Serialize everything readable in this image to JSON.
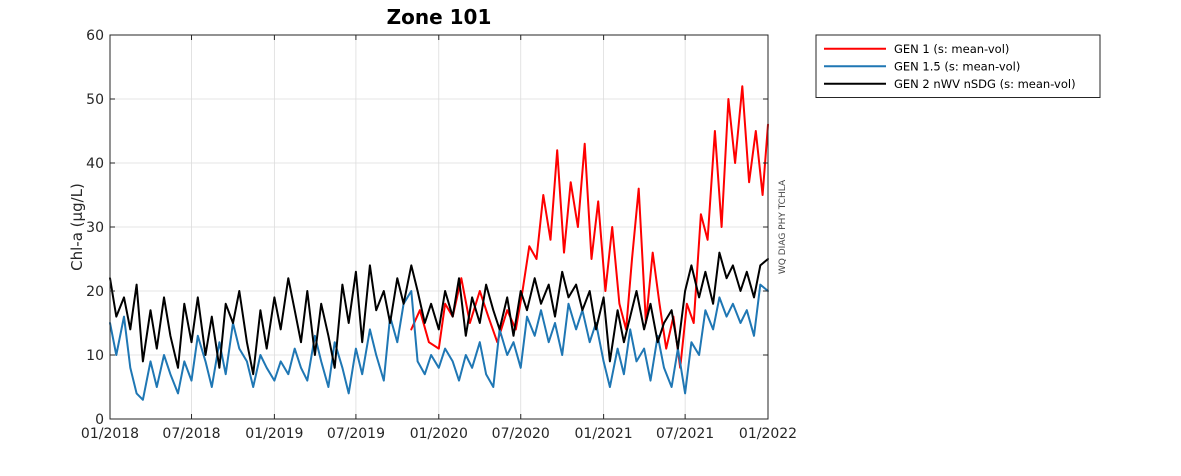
{
  "chart_data": {
    "type": "line",
    "title": "Zone 101",
    "xlabel": "",
    "ylabel": "Chl-a (μg/L)",
    "side_label": "WQ DIAG PHY TCHLA",
    "xlim": [
      "2018-01-01",
      "2022-01-01"
    ],
    "ylim": [
      0,
      60
    ],
    "x_ticks": [
      "01/2018",
      "07/2018",
      "01/2019",
      "07/2019",
      "01/2020",
      "07/2020",
      "01/2021",
      "07/2021",
      "01/2022"
    ],
    "y_ticks": [
      "0",
      "10",
      "20",
      "30",
      "40",
      "50",
      "60"
    ],
    "grid": true,
    "legend_position": "outside-right",
    "series": [
      {
        "name": "GEN 1 (s: mean-vol)",
        "color": "#ff0000",
        "x": [
          "2019-11-01",
          "2019-11-20",
          "2019-12-10",
          "2020-01-01",
          "2020-01-15",
          "2020-02-01",
          "2020-02-20",
          "2020-03-10",
          "2020-04-01",
          "2020-04-20",
          "2020-05-10",
          "2020-06-01",
          "2020-06-20",
          "2020-07-05",
          "2020-07-20",
          "2020-08-05",
          "2020-08-20",
          "2020-09-05",
          "2020-09-20",
          "2020-10-05",
          "2020-10-20",
          "2020-11-05",
          "2020-11-20",
          "2020-12-05",
          "2020-12-20",
          "2021-01-05",
          "2021-01-20",
          "2021-02-05",
          "2021-02-20",
          "2021-03-05",
          "2021-03-20",
          "2021-04-05",
          "2021-04-20",
          "2021-05-05",
          "2021-05-20",
          "2021-06-05",
          "2021-06-20",
          "2021-07-05",
          "2021-07-20",
          "2021-08-05",
          "2021-08-20",
          "2021-09-05",
          "2021-09-20",
          "2021-10-05",
          "2021-10-20",
          "2021-11-05",
          "2021-11-20",
          "2021-12-05",
          "2021-12-20",
          "2022-01-01"
        ],
        "y": [
          14,
          17,
          12,
          11,
          18,
          16,
          22,
          15,
          20,
          16,
          12,
          17,
          14,
          20,
          27,
          25,
          35,
          28,
          42,
          26,
          37,
          30,
          43,
          25,
          34,
          20,
          30,
          18,
          14,
          25,
          36,
          15,
          26,
          18,
          11,
          16,
          8,
          18,
          15,
          32,
          28,
          45,
          30,
          50,
          40,
          52,
          37,
          45,
          35,
          46
        ]
      },
      {
        "name": "GEN 1.5 (s: mean-vol)",
        "color": "#1f77b4",
        "x": [
          "2018-01-01",
          "2018-01-15",
          "2018-02-01",
          "2018-02-15",
          "2018-03-01",
          "2018-03-15",
          "2018-04-01",
          "2018-04-15",
          "2018-05-01",
          "2018-05-15",
          "2018-06-01",
          "2018-06-15",
          "2018-07-01",
          "2018-07-15",
          "2018-08-01",
          "2018-08-15",
          "2018-09-01",
          "2018-09-15",
          "2018-10-01",
          "2018-10-15",
          "2018-11-01",
          "2018-11-15",
          "2018-12-01",
          "2018-12-15",
          "2019-01-01",
          "2019-01-15",
          "2019-02-01",
          "2019-02-15",
          "2019-03-01",
          "2019-03-15",
          "2019-04-01",
          "2019-04-15",
          "2019-05-01",
          "2019-05-15",
          "2019-06-01",
          "2019-06-15",
          "2019-07-01",
          "2019-07-15",
          "2019-08-01",
          "2019-08-15",
          "2019-09-01",
          "2019-09-15",
          "2019-10-01",
          "2019-10-15",
          "2019-11-01",
          "2019-11-15",
          "2019-12-01",
          "2019-12-15",
          "2020-01-01",
          "2020-01-15",
          "2020-02-01",
          "2020-02-15",
          "2020-03-01",
          "2020-03-15",
          "2020-04-01",
          "2020-04-15",
          "2020-05-01",
          "2020-05-15",
          "2020-06-01",
          "2020-06-15",
          "2020-07-01",
          "2020-07-15",
          "2020-08-01",
          "2020-08-15",
          "2020-09-01",
          "2020-09-15",
          "2020-10-01",
          "2020-10-15",
          "2020-11-01",
          "2020-11-15",
          "2020-12-01",
          "2020-12-15",
          "2021-01-01",
          "2021-01-15",
          "2021-02-01",
          "2021-02-15",
          "2021-03-01",
          "2021-03-15",
          "2021-04-01",
          "2021-04-15",
          "2021-05-01",
          "2021-05-15",
          "2021-06-01",
          "2021-06-15",
          "2021-07-01",
          "2021-07-15",
          "2021-08-01",
          "2021-08-15",
          "2021-09-01",
          "2021-09-15",
          "2021-10-01",
          "2021-10-15",
          "2021-11-01",
          "2021-11-15",
          "2021-12-01",
          "2021-12-15",
          "2022-01-01"
        ],
        "y": [
          15,
          10,
          16,
          8,
          4,
          3,
          9,
          5,
          10,
          7,
          4,
          9,
          6,
          13,
          9,
          5,
          12,
          7,
          15,
          11,
          9,
          5,
          10,
          8,
          6,
          9,
          7,
          11,
          8,
          6,
          13,
          9,
          5,
          12,
          8,
          4,
          11,
          7,
          14,
          10,
          6,
          16,
          12,
          18,
          20,
          9,
          7,
          10,
          8,
          11,
          9,
          6,
          10,
          8,
          12,
          7,
          5,
          14,
          10,
          12,
          8,
          16,
          13,
          17,
          12,
          15,
          10,
          18,
          14,
          17,
          12,
          15,
          9,
          5,
          11,
          7,
          14,
          9,
          11,
          6,
          13,
          8,
          5,
          11,
          4,
          12,
          10,
          17,
          14,
          19,
          16,
          18,
          15,
          17,
          13,
          21,
          20
        ]
      },
      {
        "name": "GEN 2 nWV nSDG (s: mean-vol)",
        "color": "#000000",
        "x": [
          "2018-01-01",
          "2018-01-15",
          "2018-02-01",
          "2018-02-15",
          "2018-03-01",
          "2018-03-15",
          "2018-04-01",
          "2018-04-15",
          "2018-05-01",
          "2018-05-15",
          "2018-06-01",
          "2018-06-15",
          "2018-07-01",
          "2018-07-15",
          "2018-08-01",
          "2018-08-15",
          "2018-09-01",
          "2018-09-15",
          "2018-10-01",
          "2018-10-15",
          "2018-11-01",
          "2018-11-15",
          "2018-12-01",
          "2018-12-15",
          "2019-01-01",
          "2019-01-15",
          "2019-02-01",
          "2019-02-15",
          "2019-03-01",
          "2019-03-15",
          "2019-04-01",
          "2019-04-15",
          "2019-05-01",
          "2019-05-15",
          "2019-06-01",
          "2019-06-15",
          "2019-07-01",
          "2019-07-15",
          "2019-08-01",
          "2019-08-15",
          "2019-09-01",
          "2019-09-15",
          "2019-10-01",
          "2019-10-15",
          "2019-11-01",
          "2019-11-15",
          "2019-12-01",
          "2019-12-15",
          "2020-01-01",
          "2020-01-15",
          "2020-02-01",
          "2020-02-15",
          "2020-03-01",
          "2020-03-15",
          "2020-04-01",
          "2020-04-15",
          "2020-05-01",
          "2020-05-15",
          "2020-06-01",
          "2020-06-15",
          "2020-07-01",
          "2020-07-15",
          "2020-08-01",
          "2020-08-15",
          "2020-09-01",
          "2020-09-15",
          "2020-10-01",
          "2020-10-15",
          "2020-11-01",
          "2020-11-15",
          "2020-12-01",
          "2020-12-15",
          "2021-01-01",
          "2021-01-15",
          "2021-02-01",
          "2021-02-15",
          "2021-03-01",
          "2021-03-15",
          "2021-04-01",
          "2021-04-15",
          "2021-05-01",
          "2021-05-15",
          "2021-06-01",
          "2021-06-15",
          "2021-07-01",
          "2021-07-15",
          "2021-08-01",
          "2021-08-15",
          "2021-09-01",
          "2021-09-15",
          "2021-10-01",
          "2021-10-15",
          "2021-11-01",
          "2021-11-15",
          "2021-12-01",
          "2021-12-15",
          "2022-01-01"
        ],
        "y": [
          22,
          16,
          19,
          14,
          21,
          9,
          17,
          11,
          19,
          13,
          8,
          18,
          12,
          19,
          10,
          16,
          8,
          18,
          15,
          20,
          12,
          7,
          17,
          11,
          19,
          14,
          22,
          17,
          12,
          20,
          10,
          18,
          13,
          8,
          21,
          15,
          23,
          12,
          24,
          17,
          20,
          15,
          22,
          18,
          24,
          20,
          15,
          18,
          14,
          20,
          16,
          22,
          13,
          19,
          15,
          21,
          17,
          14,
          19,
          13,
          20,
          17,
          22,
          18,
          21,
          16,
          23,
          19,
          21,
          17,
          20,
          14,
          19,
          9,
          17,
          12,
          16,
          20,
          14,
          18,
          12,
          15,
          17,
          11,
          20,
          24,
          19,
          23,
          18,
          26,
          22,
          24,
          20,
          23,
          19,
          24,
          25
        ]
      }
    ]
  }
}
